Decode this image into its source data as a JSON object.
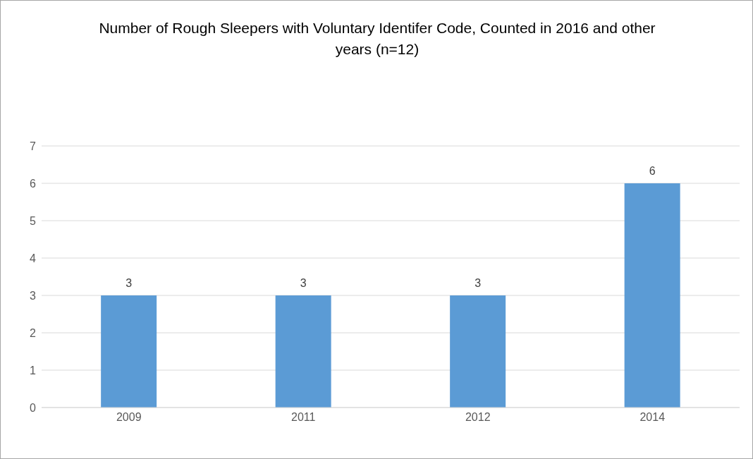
{
  "chart_data": {
    "type": "bar",
    "title": "Number of Rough Sleepers with Voluntary Identifer Code, Counted in 2016 and other years (n=12)",
    "categories": [
      "2009",
      "2011",
      "2012",
      "2014"
    ],
    "values": [
      3,
      3,
      3,
      6
    ],
    "color": "#5b9bd5",
    "ylim": [
      0,
      7
    ],
    "yticks": [
      0,
      1,
      2,
      3,
      4,
      5,
      6,
      7
    ],
    "grid": "y",
    "data_labels": true
  }
}
